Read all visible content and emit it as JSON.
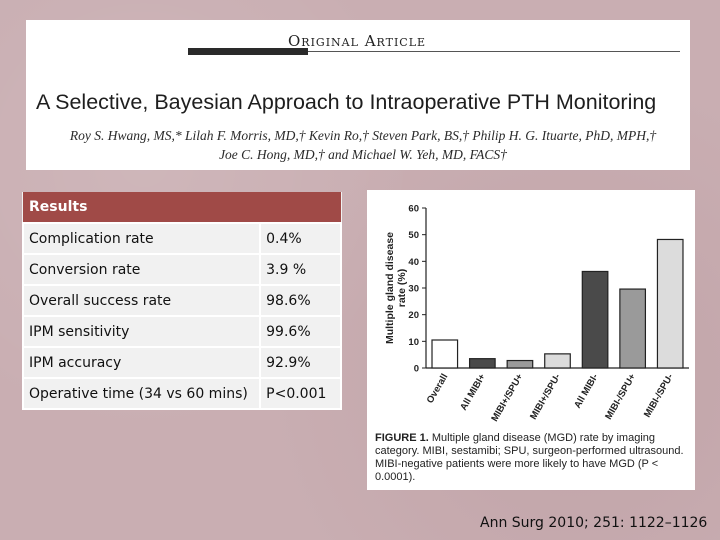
{
  "header": {
    "section_label": "Original Article",
    "title": "A Selective, Bayesian Approach to Intraoperative PTH Monitoring",
    "authors_line1": "Roy S. Hwang, MS,* Lilah F. Morris, MD,† Kevin Ro,† Steven Park, BS,† Philip H. G. Ituarte, PhD, MPH,†",
    "authors_line2": "Joe C. Hong, MD,† and Michael W. Yeh, MD, FACS†"
  },
  "results": {
    "heading": "Results",
    "rows": [
      {
        "metric": "Complication rate",
        "value": "0.4%"
      },
      {
        "metric": "Conversion rate",
        "value": "3.9 %"
      },
      {
        "metric": "Overall success rate",
        "value": "98.6%"
      },
      {
        "metric": "IPM sensitivity",
        "value": "99.6%"
      },
      {
        "metric": "IPM accuracy",
        "value": "92.9%"
      },
      {
        "metric": "Operative time (34 vs 60 mins)",
        "value": "P<0.001"
      }
    ]
  },
  "chart_data": {
    "type": "bar",
    "title": "",
    "xlabel": "",
    "ylabel": "Multiple gland disease rate (%)",
    "ylim": [
      0,
      60
    ],
    "yticks": [
      0,
      10,
      20,
      30,
      40,
      50,
      60
    ],
    "grid": false,
    "categories": [
      "Overall",
      "All MIBI+",
      "MIBI+/SPU+",
      "MIBI+/SPU-",
      "All MIBI-",
      "MIBI-/SPU+",
      "MIBI-/SPU-"
    ],
    "values": [
      10.5,
      3.5,
      2.8,
      5.3,
      36.2,
      29.6,
      48.2
    ],
    "bar_colors": [
      "#ffffff",
      "#4a4a4a",
      "#9a9a9a",
      "#dcdcdc",
      "#4a4a4a",
      "#9a9a9a",
      "#dcdcdc"
    ]
  },
  "caption": {
    "label": "FIGURE 1.",
    "text": "Multiple gland disease (MGD) rate by imaging category. MIBI, sestamibi; SPU, surgeon-performed ultrasound. MIBI-negative patients were more likely to have MGD (P < 0.0001)."
  },
  "citation": "Ann Surg 2010; 251: 1122–1126"
}
